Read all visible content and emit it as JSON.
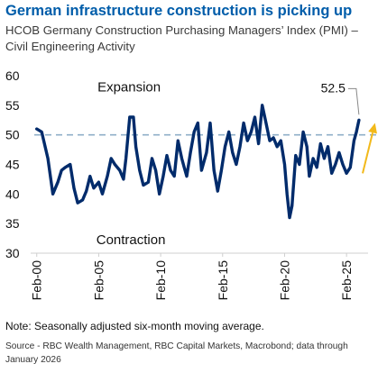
{
  "title": "German infrastructure construction is picking up",
  "subtitle": "HCOB Germany Construction Purchasing Managers’ Index (PMI) – Civil Engineering Activity",
  "note": "Note: Seasonally adjusted six-month moving average.",
  "source": "Source - RBC Wealth Management, RBC Capital Markets, Macrobond; data through January 2026",
  "colors": {
    "title": "#005DAA",
    "line": "#002B6B",
    "reference": "#8FAFC8",
    "arrow": "#F2B91B"
  },
  "chart_data": {
    "type": "line",
    "ylim": [
      30,
      60
    ],
    "yticks": [
      "60",
      "55",
      "50",
      "45",
      "40",
      "35",
      "30"
    ],
    "xlim": [
      1999.8,
      2026.3
    ],
    "xticks": [
      {
        "value": 2000,
        "label": "Feb-00"
      },
      {
        "value": 2005,
        "label": "Feb-05"
      },
      {
        "value": 2010,
        "label": "Feb-10"
      },
      {
        "value": 2015,
        "label": "Feb-15"
      },
      {
        "value": 2020,
        "label": "Feb-20"
      },
      {
        "value": 2025,
        "label": "Feb-25"
      }
    ],
    "reference_line": 50,
    "annotations": {
      "expansion": "Expansion",
      "contraction": "Contraction",
      "last_value": "52.5"
    },
    "x": [
      2000.0,
      2000.4,
      2000.9,
      2001.3,
      2001.7,
      2002.0,
      2002.3,
      2002.7,
      2003.0,
      2003.3,
      2003.7,
      2004.0,
      2004.3,
      2004.6,
      2005.0,
      2005.3,
      2005.7,
      2006.0,
      2006.3,
      2006.7,
      2007.0,
      2007.2,
      2007.5,
      2007.8,
      2008.0,
      2008.3,
      2008.6,
      2009.0,
      2009.3,
      2009.6,
      2009.9,
      2010.2,
      2010.5,
      2010.8,
      2011.1,
      2011.4,
      2011.7,
      2011.9,
      2012.1,
      2012.4,
      2012.7,
      2013.0,
      2013.3,
      2013.7,
      2014.0,
      2014.3,
      2014.6,
      2014.9,
      2015.2,
      2015.5,
      2015.8,
      2016.1,
      2016.4,
      2016.7,
      2017.0,
      2017.3,
      2017.6,
      2017.9,
      2018.2,
      2018.5,
      2018.8,
      2019.1,
      2019.4,
      2019.7,
      2020.0,
      2020.2,
      2020.4,
      2020.6,
      2020.9,
      2021.2,
      2021.5,
      2021.8,
      2022.0,
      2022.3,
      2022.6,
      2022.9,
      2023.2,
      2023.5,
      2023.8,
      2024.1,
      2024.4,
      2024.7,
      2025.0,
      2025.3,
      2025.6,
      2025.8,
      2026.0
    ],
    "y": [
      51.0,
      50.5,
      46.0,
      40.0,
      42.0,
      44.0,
      44.5,
      45.0,
      41.0,
      38.5,
      39.0,
      40.5,
      43.0,
      41.0,
      42.0,
      40.0,
      43.0,
      46.0,
      45.0,
      44.0,
      42.5,
      46.0,
      53.0,
      53.0,
      48.0,
      44.0,
      41.5,
      42.0,
      46.0,
      44.0,
      40.0,
      43.0,
      46.5,
      44.0,
      43.0,
      49.0,
      46.0,
      44.5,
      43.0,
      47.0,
      50.5,
      52.0,
      44.0,
      47.0,
      52.0,
      44.0,
      40.5,
      44.0,
      48.0,
      50.5,
      47.0,
      45.0,
      48.0,
      52.0,
      49.0,
      50.5,
      53.0,
      48.5,
      55.0,
      52.0,
      49.0,
      49.5,
      48.0,
      49.0,
      45.0,
      40.0,
      36.0,
      38.0,
      46.5,
      45.0,
      50.5,
      48.0,
      43.0,
      46.0,
      44.5,
      48.5,
      46.0,
      48.0,
      43.5,
      45.0,
      47.0,
      45.0,
      43.5,
      44.5,
      49.0,
      50.5,
      52.5
    ],
    "trend_arrow": {
      "x": [
        2026.3,
        2027.3
      ],
      "y": [
        43.5,
        52.0
      ]
    }
  }
}
